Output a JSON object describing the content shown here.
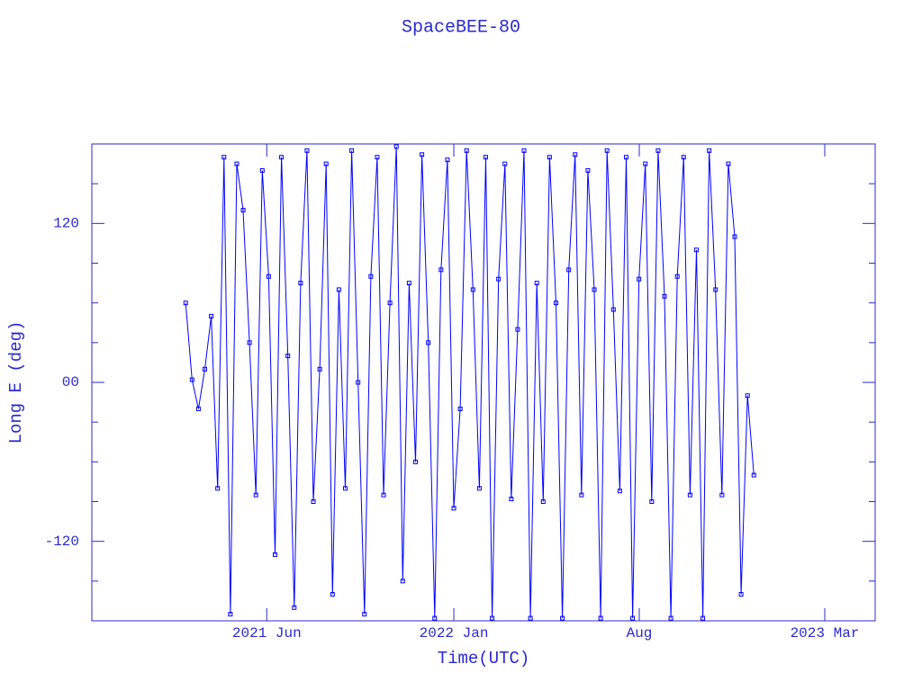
{
  "chart_data": {
    "type": "line",
    "title": "SpaceBEE-80",
    "x_label": "Time(UTC)",
    "y_label": "Long E (deg)",
    "color": "#0000ff",
    "xlim": [
      2020.866,
      2023.32
    ],
    "xticks": [
      {
        "value": 2021.414,
        "label": "2021 Jun"
      },
      {
        "value": 2022.0,
        "label": "2022 Jan"
      },
      {
        "value": 2022.581,
        "label": "Aug"
      },
      {
        "value": 2023.162,
        "label": "2023 Mar"
      }
    ],
    "ylim": [
      -180,
      180
    ],
    "yticks": [
      {
        "value": 120,
        "label": "120"
      },
      {
        "value": 0,
        "label": "00"
      },
      {
        "value": -120,
        "label": "-120"
      }
    ],
    "yminor_ticks": [
      -150,
      -90,
      -60,
      -30,
      30,
      60,
      90,
      150
    ],
    "x": [
      2021.16,
      2021.18,
      2021.2,
      2021.22,
      2021.24,
      2021.26,
      2021.28,
      2021.3,
      2021.32,
      2021.34,
      2021.36,
      2021.38,
      2021.4,
      2021.42,
      2021.44,
      2021.46,
      2021.48,
      2021.5,
      2021.52,
      2021.54,
      2021.56,
      2021.58,
      2021.6,
      2021.62,
      2021.64,
      2021.66,
      2021.68,
      2021.7,
      2021.72,
      2021.74,
      2021.76,
      2021.78,
      2021.8,
      2021.82,
      2021.84,
      2021.86,
      2021.88,
      2021.9,
      2021.92,
      2021.94,
      2021.96,
      2021.98,
      2022.0,
      2022.02,
      2022.04,
      2022.06,
      2022.08,
      2022.1,
      2022.12,
      2022.14,
      2022.16,
      2022.18,
      2022.2,
      2022.22,
      2022.24,
      2022.26,
      2022.28,
      2022.3,
      2022.32,
      2022.34,
      2022.36,
      2022.38,
      2022.4,
      2022.42,
      2022.44,
      2022.46,
      2022.48,
      2022.5,
      2022.52,
      2022.54,
      2022.56,
      2022.58,
      2022.6,
      2022.62,
      2022.64,
      2022.66,
      2022.68,
      2022.7,
      2022.72,
      2022.74,
      2022.76,
      2022.78,
      2022.8,
      2022.82,
      2022.84,
      2022.86,
      2022.88,
      2022.9,
      2022.92,
      2022.94
    ],
    "values": [
      60,
      2,
      -20,
      10,
      50,
      -80,
      170,
      -175,
      165,
      130,
      30,
      -85,
      160,
      80,
      -130,
      170,
      20,
      -170,
      75,
      175,
      -90,
      10,
      165,
      -160,
      70,
      -80,
      175,
      0,
      -175,
      80,
      170,
      -85,
      60,
      178,
      -150,
      75,
      -60,
      172,
      30,
      -178,
      85,
      168,
      -95,
      -20,
      175,
      70,
      -80,
      170,
      -178,
      78,
      165,
      -88,
      40,
      175,
      -178,
      75,
      -90,
      170,
      60,
      -178,
      85,
      172,
      -85,
      160,
      70,
      -178,
      175,
      55,
      -82,
      170,
      -178,
      78,
      165,
      -90,
      175,
      65,
      -178,
      80,
      170,
      -85,
      100,
      -178,
      175,
      70,
      -85,
      165,
      110,
      -160,
      -10,
      -70
    ]
  }
}
